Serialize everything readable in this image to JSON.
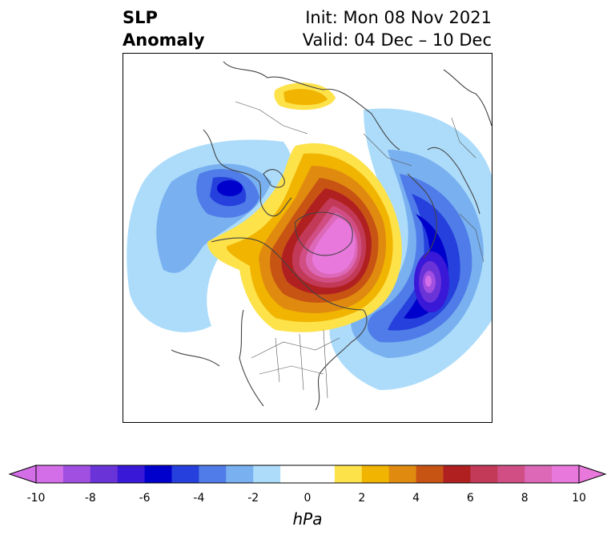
{
  "title": {
    "left_line1": "SLP",
    "left_line2": "Anomaly",
    "right_line1": "Init: Mon 08 Nov 2021",
    "right_line2": "Valid: 04 Dec – 10 Dec"
  },
  "colorbar": {
    "unit": "hPa",
    "ticks": [
      "-10",
      "-8",
      "-6",
      "-4",
      "-2",
      "0",
      "2",
      "4",
      "6",
      "8",
      "10"
    ],
    "range": [
      -10,
      10
    ],
    "extend": "both",
    "colors": [
      "#d36ee8",
      "#a04fe0",
      "#6a33d8",
      "#3a18d8",
      "#0000cc",
      "#2540dc",
      "#4f7ce8",
      "#78b0f0",
      "#acdcfa",
      "#ffffff",
      "#ffffff",
      "#fde24a",
      "#f1b400",
      "#e08b10",
      "#c85414",
      "#b02020",
      "#c23a58",
      "#d04e84",
      "#dd68b8",
      "#e878dc"
    ]
  },
  "map": {
    "projection": "north polar stereographic",
    "field": "SLP anomaly",
    "features": [
      {
        "name": "arctic-positive-anomaly",
        "sign": "positive",
        "peak_hpa": 10
      },
      {
        "name": "north-atlantic-negative-anomaly",
        "sign": "negative",
        "peak_hpa": -10
      },
      {
        "name": "north-pacific-negative-anomaly",
        "sign": "negative",
        "peak_hpa": -6
      },
      {
        "name": "siberia-positive-anomaly",
        "sign": "positive",
        "peak_hpa": 3
      }
    ]
  }
}
